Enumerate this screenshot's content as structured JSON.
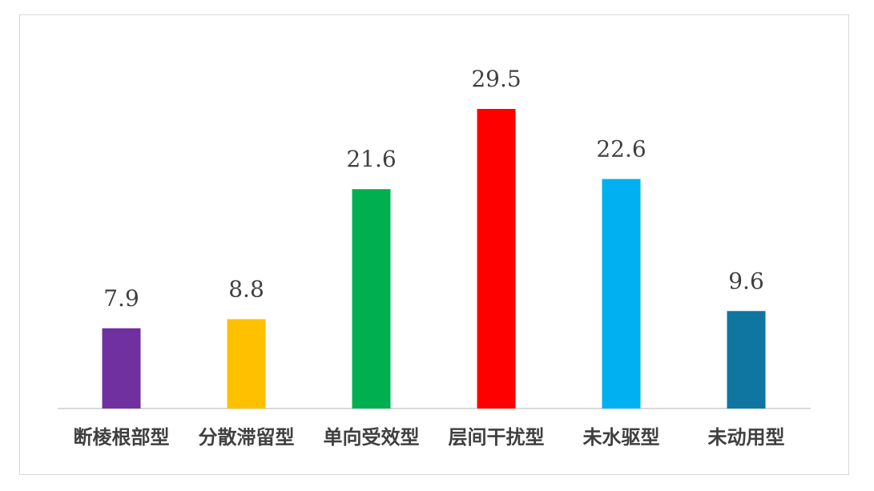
{
  "chart_data": {
    "type": "bar",
    "title": "",
    "xlabel": "",
    "ylabel": "",
    "categories": [
      "断棱根部型",
      "分散滞留型",
      "单向受效型",
      "层间干扰型",
      "未水驱型",
      "未动用型"
    ],
    "values": [
      7.9,
      8.8,
      21.6,
      29.5,
      22.6,
      9.6
    ],
    "value_labels": [
      "7.9",
      "8.8",
      "21.6",
      "29.5",
      "22.6",
      "9.6"
    ],
    "colors": [
      "#7030A0",
      "#FFC000",
      "#00B050",
      "#FF0000",
      "#00B0F0",
      "#0E76A0"
    ],
    "ylim": [
      0,
      32
    ],
    "grid": false,
    "legend": "none"
  }
}
